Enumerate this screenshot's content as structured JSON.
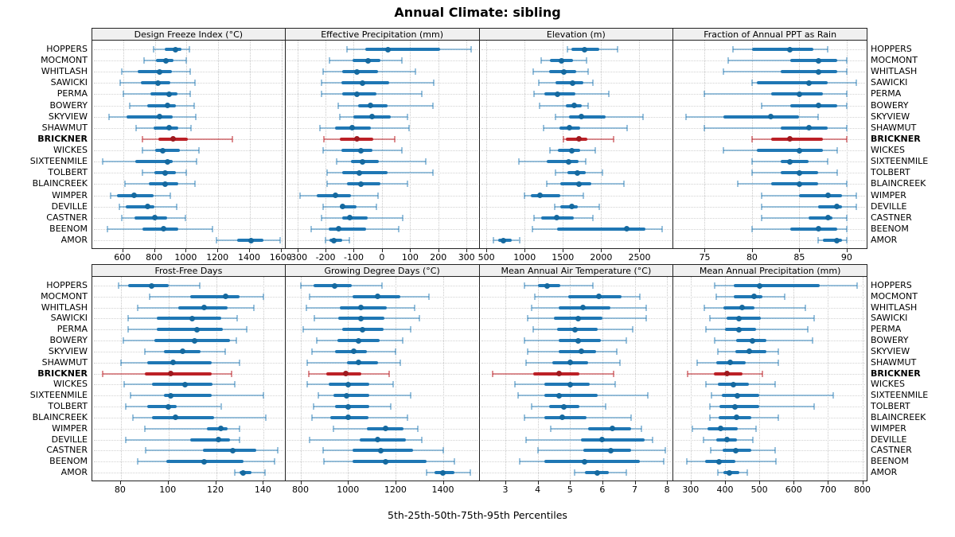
{
  "chart_data": {
    "type": "dotplot-trellis",
    "title": "Annual Climate: sibling",
    "caption": "5th-25th-50th-75th-95th Percentiles",
    "legend_meaning": "each row shows 5th, 25th, 50th, 75th, 95th percentiles",
    "stations": [
      "HOPPERS",
      "MOCMONT",
      "WHITLASH",
      "SAWICKI",
      "PERMA",
      "BOWERY",
      "SKYVIEW",
      "SHAWMUT",
      "BRICKNER",
      "WICKES",
      "SIXTEENMILE",
      "TOLBERT",
      "BLAINCREEK",
      "WIMPER",
      "DEVILLE",
      "CASTNER",
      "BEENOM",
      "AMOR"
    ],
    "highlight_station": "BRICKNER",
    "colors": {
      "blue": "#1f77b4",
      "blue_light": "rgba(31,119,180,0.45)",
      "blue_dot": "#15699f",
      "red": "#bc2026",
      "red_light": "rgba(188,32,38,0.5)",
      "red_dot": "#9e1a1f",
      "grid": "#c9c9c9",
      "header_bg": "#f0f0f0",
      "border": "#222222"
    },
    "panels": [
      {
        "title": "Design Freeze Index (°C)",
        "xlim": [
          405,
          1630
        ],
        "ticks": [
          600,
          800,
          1000,
          1200,
          1400,
          1600
        ],
        "values": [
          [
            790,
            860,
            930,
            970,
            1020
          ],
          [
            730,
            805,
            870,
            920,
            1000
          ],
          [
            590,
            690,
            830,
            910,
            1025
          ],
          [
            580,
            710,
            820,
            900,
            1055
          ],
          [
            600,
            770,
            890,
            945,
            1025
          ],
          [
            640,
            750,
            880,
            935,
            1050
          ],
          [
            510,
            620,
            830,
            915,
            1060
          ],
          [
            680,
            790,
            890,
            950,
            1030
          ],
          [
            720,
            820,
            915,
            1010,
            1290
          ],
          [
            720,
            800,
            850,
            960,
            1080
          ],
          [
            470,
            675,
            880,
            915,
            1065
          ],
          [
            720,
            795,
            865,
            935,
            1000
          ],
          [
            610,
            760,
            865,
            950,
            1055
          ],
          [
            520,
            560,
            670,
            790,
            900
          ],
          [
            575,
            615,
            755,
            795,
            940
          ],
          [
            590,
            670,
            800,
            875,
            995
          ],
          [
            500,
            720,
            855,
            950,
            1165
          ],
          [
            1190,
            1320,
            1410,
            1485,
            1590
          ]
        ]
      },
      {
        "title": "Effective Precipitation (mm)",
        "xlim": [
          -342,
          346
        ],
        "ticks": [
          -300,
          -200,
          -100,
          0,
          100,
          200,
          300
        ],
        "values": [
          [
            -125,
            -60,
            20,
            205,
            315
          ],
          [
            -185,
            -105,
            -50,
            -5,
            70
          ],
          [
            -210,
            -140,
            -90,
            -15,
            120
          ],
          [
            -215,
            -145,
            -70,
            25,
            185
          ],
          [
            -215,
            -140,
            -90,
            -20,
            140
          ],
          [
            -155,
            -85,
            -40,
            20,
            180
          ],
          [
            -150,
            -100,
            -35,
            30,
            90
          ],
          [
            -220,
            -165,
            -105,
            -40,
            95
          ],
          [
            -205,
            -150,
            -90,
            -30,
            45
          ],
          [
            -210,
            -145,
            -75,
            -35,
            70
          ],
          [
            -160,
            -110,
            -70,
            -10,
            155
          ],
          [
            -195,
            -140,
            -80,
            20,
            180
          ],
          [
            -195,
            -125,
            -75,
            -5,
            90
          ],
          [
            -290,
            -230,
            -165,
            -110,
            -15
          ],
          [
            -210,
            -150,
            -140,
            -90,
            -20
          ],
          [
            -215,
            -140,
            -115,
            -50,
            75
          ],
          [
            -250,
            -190,
            -155,
            -55,
            60
          ],
          [
            -200,
            -185,
            -170,
            -140,
            -115
          ]
        ]
      },
      {
        "title": "Elevation (m)",
        "xlim": [
          410,
          2945
        ],
        "ticks": [
          500,
          1000,
          1500,
          2000,
          2500
        ],
        "values": [
          [
            1560,
            1615,
            1780,
            1980,
            2210
          ],
          [
            1215,
            1335,
            1485,
            1630,
            1810
          ],
          [
            1110,
            1320,
            1510,
            1675,
            1830
          ],
          [
            1180,
            1405,
            1630,
            1770,
            1890
          ],
          [
            1120,
            1260,
            1425,
            1665,
            2105
          ],
          [
            1190,
            1535,
            1650,
            1745,
            1830
          ],
          [
            1400,
            1580,
            1740,
            2060,
            2550
          ],
          [
            1250,
            1450,
            1590,
            1725,
            2340
          ],
          [
            1510,
            1540,
            1705,
            1820,
            2165
          ],
          [
            1330,
            1430,
            1620,
            1725,
            1920
          ],
          [
            920,
            1290,
            1570,
            1710,
            1800
          ],
          [
            1400,
            1555,
            1685,
            1800,
            2015
          ],
          [
            1290,
            1470,
            1705,
            1870,
            2300
          ],
          [
            995,
            1085,
            1205,
            1465,
            1765
          ],
          [
            1390,
            1470,
            1615,
            1695,
            1975
          ],
          [
            1125,
            1215,
            1420,
            1640,
            1890
          ],
          [
            1100,
            1425,
            2330,
            2575,
            2795
          ],
          [
            590,
            650,
            725,
            835,
            930
          ]
        ]
      },
      {
        "title": "Fraction of Annual PPT as Rain",
        "xlim": [
          71.7,
          92.2
        ],
        "ticks": [
          75,
          80,
          85,
          90
        ],
        "values": [
          [
            78,
            80,
            84,
            86.5,
            88
          ],
          [
            77.5,
            84,
            87,
            89,
            90
          ],
          [
            77,
            83,
            87,
            89,
            90
          ],
          [
            80,
            80.5,
            86,
            88,
            91
          ],
          [
            75,
            82,
            85,
            87.5,
            90
          ],
          [
            81,
            84,
            87,
            89,
            90
          ],
          [
            73,
            77,
            82,
            85,
            87
          ],
          [
            75,
            83,
            86,
            88,
            90
          ],
          [
            80,
            82,
            84,
            87.5,
            90
          ],
          [
            77,
            80.5,
            85,
            87.5,
            89
          ],
          [
            80,
            83,
            84,
            86,
            88
          ],
          [
            80,
            83,
            85,
            87,
            89
          ],
          [
            78.5,
            82,
            85,
            87,
            90
          ],
          [
            81,
            85,
            88,
            89.5,
            91
          ],
          [
            81,
            87,
            89,
            89.5,
            91
          ],
          [
            81,
            86,
            88,
            88.5,
            90
          ],
          [
            80,
            84,
            87,
            89,
            90
          ],
          [
            87,
            87.5,
            89,
            89.5,
            90
          ]
        ]
      },
      {
        "title": "Frost-Free Days",
        "xlim": [
          68,
          149.5
        ],
        "ticks": [
          80,
          100,
          120,
          140
        ],
        "values": [
          [
            79,
            83,
            93,
            100,
            113
          ],
          [
            92,
            109,
            124,
            130,
            140
          ],
          [
            87,
            104,
            115,
            125,
            136
          ],
          [
            83,
            95,
            110,
            122,
            129
          ],
          [
            83,
            95,
            112,
            123,
            133
          ],
          [
            81,
            94,
            111,
            126,
            128.5
          ],
          [
            90,
            98,
            106,
            113.5,
            124
          ],
          [
            80,
            91,
            102,
            118,
            130
          ],
          [
            72.5,
            90,
            101,
            118,
            126.5
          ],
          [
            81.5,
            93,
            107,
            118.5,
            128
          ],
          [
            84,
            98,
            101,
            118,
            140
          ],
          [
            82,
            91,
            100,
            103.5,
            122
          ],
          [
            85,
            93,
            103,
            119,
            141
          ],
          [
            90,
            116,
            122,
            125,
            130
          ],
          [
            82,
            109,
            121,
            126,
            130
          ],
          [
            90.5,
            114.5,
            127,
            137,
            146
          ],
          [
            87,
            99,
            115,
            131.5,
            144.5
          ],
          [
            128,
            130,
            131.5,
            135,
            140.5
          ]
        ]
      },
      {
        "title": "Growing Degree Days (°C)",
        "xlim": [
          737,
          1554
        ],
        "ticks": [
          800,
          1000,
          1200,
          1400
        ],
        "values": [
          [
            800,
            855,
            945,
            1015,
            1145
          ],
          [
            840,
            1020,
            1125,
            1220,
            1340
          ],
          [
            825,
            965,
            1055,
            1165,
            1280
          ],
          [
            860,
            960,
            1055,
            1155,
            1300
          ],
          [
            810,
            975,
            1060,
            1150,
            1265
          ],
          [
            870,
            955,
            1045,
            1135,
            1230
          ],
          [
            850,
            945,
            1025,
            1080,
            1200
          ],
          [
            830,
            995,
            1045,
            1125,
            1220
          ],
          [
            835,
            910,
            990,
            1055,
            1175
          ],
          [
            830,
            920,
            1000,
            1090,
            1190
          ],
          [
            875,
            940,
            995,
            1090,
            1265
          ],
          [
            855,
            945,
            1000,
            1090,
            1180
          ],
          [
            850,
            925,
            1000,
            1085,
            1250
          ],
          [
            940,
            1080,
            1160,
            1235,
            1295
          ],
          [
            840,
            1050,
            1125,
            1245,
            1310
          ],
          [
            895,
            1020,
            1140,
            1275,
            1400
          ],
          [
            900,
            1020,
            1160,
            1330,
            1450
          ],
          [
            1330,
            1365,
            1400,
            1450,
            1515
          ]
        ]
      },
      {
        "title": "Mean Annual Air Temperature (°C)",
        "xlim": [
          2.2,
          8.2
        ],
        "ticks": [
          3,
          4,
          5,
          6,
          7,
          8
        ],
        "values": [
          [
            3.6,
            4.0,
            4.3,
            4.7,
            5.7
          ],
          [
            3.9,
            4.95,
            5.9,
            6.6,
            7.15
          ],
          [
            3.8,
            4.65,
            5.4,
            6.25,
            7.35
          ],
          [
            3.7,
            4.5,
            5.25,
            6.0,
            7.35
          ],
          [
            3.85,
            4.6,
            5.15,
            5.85,
            6.95
          ],
          [
            3.6,
            4.65,
            5.25,
            5.95,
            6.75
          ],
          [
            3.7,
            4.65,
            5.35,
            5.8,
            6.45
          ],
          [
            3.65,
            4.45,
            5.0,
            5.55,
            6.55
          ],
          [
            2.6,
            3.85,
            4.65,
            5.3,
            6.35
          ],
          [
            3.3,
            4.2,
            5.0,
            5.6,
            6.4
          ],
          [
            3.4,
            4.2,
            4.65,
            5.85,
            7.4
          ],
          [
            3.8,
            4.35,
            4.8,
            5.3,
            6.1
          ],
          [
            3.6,
            4.2,
            4.75,
            5.5,
            6.9
          ],
          [
            4.4,
            5.55,
            6.3,
            6.9,
            7.2
          ],
          [
            3.65,
            5.35,
            6.0,
            7.3,
            7.55
          ],
          [
            4.0,
            5.4,
            6.25,
            6.9,
            7.95
          ],
          [
            3.45,
            4.2,
            5.45,
            7.15,
            7.9
          ],
          [
            5.15,
            5.45,
            5.85,
            6.2,
            6.75
          ]
        ]
      },
      {
        "title": "Mean Annual Precipitation (mm)",
        "xlim": [
          250,
          815
        ],
        "ticks": [
          300,
          400,
          500,
          600,
          700,
          800
        ],
        "values": [
          [
            370,
            425,
            500,
            675,
            785
          ],
          [
            375,
            425,
            485,
            510,
            575
          ],
          [
            340,
            395,
            450,
            485,
            635
          ],
          [
            355,
            405,
            440,
            505,
            660
          ],
          [
            345,
            400,
            440,
            490,
            640
          ],
          [
            370,
            432,
            480,
            520,
            655
          ],
          [
            380,
            430,
            470,
            520,
            555
          ],
          [
            320,
            375,
            415,
            460,
            555
          ],
          [
            290,
            367,
            405,
            450,
            510
          ],
          [
            345,
            380,
            425,
            470,
            545
          ],
          [
            360,
            390,
            435,
            500,
            715
          ],
          [
            355,
            385,
            430,
            500,
            660
          ],
          [
            355,
            382,
            433,
            477,
            556
          ],
          [
            305,
            350,
            388,
            437,
            490
          ],
          [
            338,
            375,
            406,
            434,
            481
          ],
          [
            359,
            394,
            431,
            477,
            547
          ],
          [
            288,
            342,
            382,
            431,
            548
          ],
          [
            380,
            396,
            413,
            442,
            465
          ]
        ]
      }
    ]
  }
}
